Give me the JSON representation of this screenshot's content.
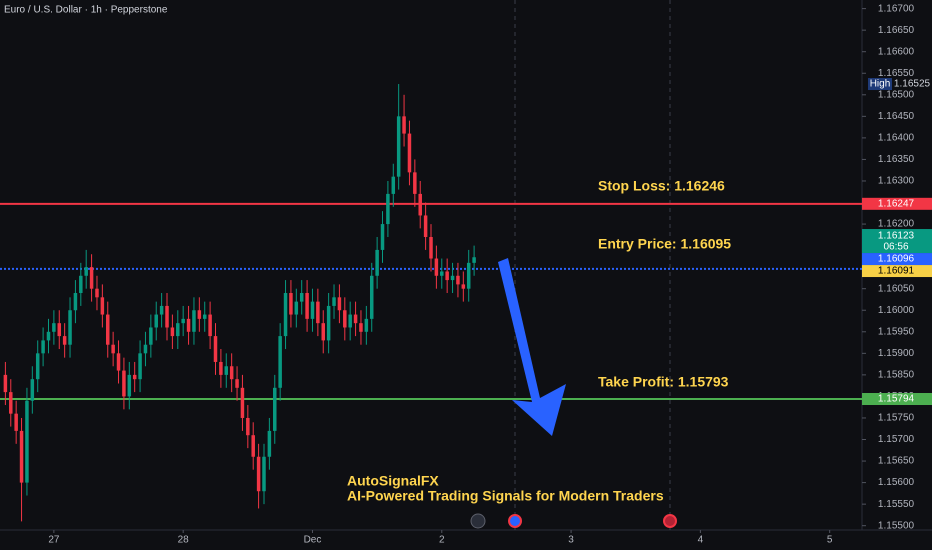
{
  "chart_data": {
    "type": "candlestick",
    "title": "Euro / U.S. Dollar · 1h · Pepperstone",
    "up_color": "#089981",
    "down_color": "#f23645",
    "x": [
      -9,
      -8,
      -7,
      -6,
      -5,
      -4,
      -3,
      -2,
      -1,
      0,
      1,
      2,
      3,
      4,
      5,
      6,
      7,
      8,
      9,
      10,
      11,
      12,
      13,
      14,
      15,
      16,
      17,
      18,
      19,
      20,
      21,
      22,
      23,
      24,
      25,
      26,
      27,
      28,
      29,
      30,
      31,
      32,
      33,
      34,
      35,
      36,
      37,
      38,
      39,
      40,
      41,
      42,
      43,
      44,
      45,
      46,
      47,
      48,
      49,
      50,
      51,
      52,
      53,
      54,
      55,
      56,
      57,
      58,
      59,
      60,
      61,
      62,
      63,
      64,
      65,
      66,
      67,
      68,
      69,
      70,
      71,
      72,
      73,
      74,
      75,
      76,
      77,
      78
    ],
    "open": [
      1.1585,
      1.1581,
      1.1576,
      1.1572,
      1.156,
      1.1579,
      1.1584,
      1.159,
      1.1593,
      1.1595,
      1.1597,
      1.1594,
      1.1592,
      1.16,
      1.1604,
      1.1608,
      1.161,
      1.1605,
      1.1603,
      1.1599,
      1.1592,
      1.159,
      1.1586,
      1.158,
      1.1585,
      1.1584,
      1.159,
      1.1592,
      1.1596,
      1.1599,
      1.1601,
      1.1596,
      1.1594,
      1.1597,
      1.1598,
      1.1595,
      1.16,
      1.1598,
      1.1599,
      1.1594,
      1.1588,
      1.1585,
      1.1587,
      1.1584,
      1.1582,
      1.1575,
      1.1571,
      1.1566,
      1.1558,
      1.1566,
      1.1572,
      1.1582,
      1.1594,
      1.1604,
      1.1599,
      1.1602,
      1.1604,
      1.1598,
      1.1602,
      1.1597,
      1.1593,
      1.1601,
      1.1603,
      1.16,
      1.1596,
      1.1599,
      1.1597,
      1.1595,
      1.1598,
      1.1608,
      1.1614,
      1.162,
      1.1627,
      1.1631,
      1.1645,
      1.1641,
      1.1632,
      1.1627,
      1.1622,
      1.1617,
      1.1612,
      1.1608,
      1.1609,
      1.1607,
      1.1608,
      1.1606,
      1.1605,
      1.1611
    ],
    "high": [
      1.1588,
      1.1584,
      1.1579,
      1.1575,
      1.1582,
      1.1587,
      1.1593,
      1.1596,
      1.1598,
      1.16,
      1.16,
      1.1597,
      1.1603,
      1.1607,
      1.1611,
      1.1614,
      1.1613,
      1.1608,
      1.1606,
      1.1602,
      1.1595,
      1.1593,
      1.1589,
      1.1588,
      1.1588,
      1.1593,
      1.1595,
      1.1599,
      1.1602,
      1.1604,
      1.1604,
      1.1599,
      1.16,
      1.1601,
      1.1601,
      1.1603,
      1.1603,
      1.1602,
      1.1602,
      1.1597,
      1.1591,
      1.159,
      1.159,
      1.1587,
      1.1585,
      1.1578,
      1.1574,
      1.1569,
      1.1569,
      1.1575,
      1.1585,
      1.1597,
      1.1607,
      1.1607,
      1.1605,
      1.1607,
      1.1607,
      1.1605,
      1.1605,
      1.16,
      1.1604,
      1.1606,
      1.1606,
      1.1603,
      1.1602,
      1.1602,
      1.16,
      1.1601,
      1.1611,
      1.1617,
      1.1623,
      1.163,
      1.1634,
      1.16525,
      1.165,
      1.1644,
      1.1635,
      1.163,
      1.1625,
      1.162,
      1.1615,
      1.1612,
      1.1612,
      1.1611,
      1.1611,
      1.1609,
      1.1614,
      1.1615
    ],
    "low": [
      1.1578,
      1.1573,
      1.1569,
      1.1551,
      1.1557,
      1.1576,
      1.1581,
      1.1587,
      1.159,
      1.1592,
      1.1591,
      1.1589,
      1.1589,
      1.1597,
      1.1601,
      1.1605,
      1.1602,
      1.16,
      1.1596,
      1.1589,
      1.1587,
      1.1583,
      1.1577,
      1.1577,
      1.1581,
      1.1581,
      1.1587,
      1.1589,
      1.1593,
      1.1596,
      1.1593,
      1.1591,
      1.1591,
      1.1594,
      1.1592,
      1.1592,
      1.1595,
      1.1595,
      1.1591,
      1.1585,
      1.1582,
      1.1582,
      1.1581,
      1.1579,
      1.1572,
      1.1568,
      1.1563,
      1.1554,
      1.1555,
      1.1563,
      1.1569,
      1.1579,
      1.1591,
      1.1596,
      1.1596,
      1.1599,
      1.1595,
      1.1595,
      1.1594,
      1.159,
      1.159,
      1.1598,
      1.1597,
      1.1593,
      1.1593,
      1.1594,
      1.1592,
      1.1592,
      1.1595,
      1.1605,
      1.1611,
      1.1617,
      1.1624,
      1.1628,
      1.1638,
      1.1629,
      1.1624,
      1.1619,
      1.1614,
      1.1609,
      1.1605,
      1.1605,
      1.1604,
      1.1604,
      1.1603,
      1.1602,
      1.1602,
      1.1608
    ],
    "close": [
      1.1581,
      1.1576,
      1.1572,
      1.156,
      1.1579,
      1.1584,
      1.159,
      1.1593,
      1.1595,
      1.1597,
      1.1594,
      1.1592,
      1.16,
      1.1604,
      1.1608,
      1.161,
      1.1605,
      1.1603,
      1.1599,
      1.1592,
      1.159,
      1.1586,
      1.158,
      1.1585,
      1.1584,
      1.159,
      1.1592,
      1.1596,
      1.1599,
      1.1601,
      1.1596,
      1.1594,
      1.1597,
      1.1598,
      1.1595,
      1.16,
      1.1598,
      1.1599,
      1.1594,
      1.1588,
      1.1585,
      1.1587,
      1.1584,
      1.1582,
      1.1575,
      1.1571,
      1.1566,
      1.1558,
      1.1566,
      1.1572,
      1.1582,
      1.1594,
      1.1604,
      1.1599,
      1.1602,
      1.1604,
      1.1598,
      1.1602,
      1.1597,
      1.1593,
      1.1601,
      1.1603,
      1.16,
      1.1596,
      1.1599,
      1.1597,
      1.1595,
      1.1598,
      1.1608,
      1.1614,
      1.162,
      1.1627,
      1.1631,
      1.1645,
      1.1641,
      1.1632,
      1.1627,
      1.1622,
      1.1617,
      1.1612,
      1.1608,
      1.1609,
      1.1607,
      1.1608,
      1.1606,
      1.1605,
      1.1611,
      1.16123
    ],
    "xlim": [
      -10,
      150
    ],
    "xticks": [
      {
        "value": 0,
        "label": "27"
      },
      {
        "value": 24,
        "label": "28"
      },
      {
        "value": 48,
        "label": "Dec"
      },
      {
        "value": 72,
        "label": "2"
      },
      {
        "value": 96,
        "label": "3"
      },
      {
        "value": 120,
        "label": "4"
      },
      {
        "value": 144,
        "label": "5"
      }
    ],
    "ylim": [
      1.1549,
      1.1672
    ],
    "yticks": [
      {
        "value": 1.155,
        "label": "1.15500"
      },
      {
        "value": 1.1555,
        "label": "1.15550"
      },
      {
        "value": 1.156,
        "label": "1.15600"
      },
      {
        "value": 1.1565,
        "label": "1.15650"
      },
      {
        "value": 1.157,
        "label": "1.15700"
      },
      {
        "value": 1.1575,
        "label": "1.15750"
      },
      {
        "value": 1.158,
        "label": "1.15800"
      },
      {
        "value": 1.1585,
        "label": "1.15850"
      },
      {
        "value": 1.159,
        "label": "1.15900"
      },
      {
        "value": 1.1595,
        "label": "1.15950"
      },
      {
        "value": 1.16,
        "label": "1.16000"
      },
      {
        "value": 1.1605,
        "label": "1.16050"
      },
      {
        "value": 1.161,
        "label": "1.16100"
      },
      {
        "value": 1.1615,
        "label": "1.16150"
      },
      {
        "value": 1.162,
        "label": "1.16200"
      },
      {
        "value": 1.1625,
        "label": "1.16250"
      },
      {
        "value": 1.163,
        "label": "1.16300"
      },
      {
        "value": 1.1635,
        "label": "1.16350"
      },
      {
        "value": 1.164,
        "label": "1.16400"
      },
      {
        "value": 1.1645,
        "label": "1.16450"
      },
      {
        "value": 1.165,
        "label": "1.16500"
      },
      {
        "value": 1.1655,
        "label": "1.16550"
      },
      {
        "value": 1.166,
        "label": "1.16600"
      },
      {
        "value": 1.1665,
        "label": "1.16650"
      },
      {
        "value": 1.167,
        "label": "1.16700"
      }
    ],
    "levels": [
      {
        "value": 1.16247,
        "color": "#f23645",
        "style": "solid"
      },
      {
        "value": 1.16096,
        "color": "#2962ff",
        "style": "dotted"
      },
      {
        "value": 1.15794,
        "color": "#4caf50",
        "style": "solid"
      }
    ],
    "price_tags": [
      {
        "value": 1.16525,
        "tag": "High",
        "color": "#1e3a78"
      },
      {
        "value": 1.16123,
        "countdown": "06:56",
        "color": "#089981"
      },
      {
        "value": 1.16091,
        "color": "#f7d046"
      }
    ],
    "annotations": [
      "Stop Loss: 1.16246",
      "Entry Price: 1.16095",
      "Take Profit: 1.15793"
    ],
    "watermark": [
      "AutoSignalFX",
      "AI-Powered Trading Signals for Modern Traders"
    ]
  }
}
